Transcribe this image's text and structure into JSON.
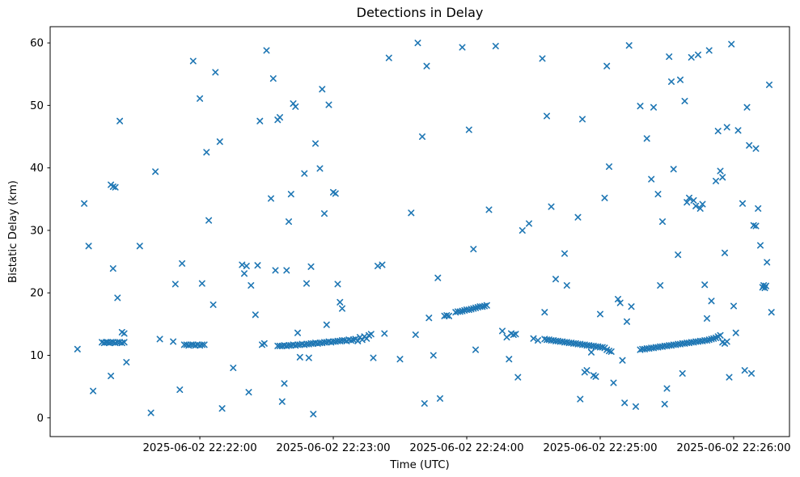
{
  "chart_data": {
    "type": "scatter",
    "title": "Detections in Delay",
    "xlabel": "Time (UTC)",
    "ylabel": "Bistatic Delay (km)",
    "marker": "x",
    "marker_color": "#1f77b4",
    "legend": "none",
    "grid": false,
    "x_unit": "seconds after 2025-06-02 22:21:00 UTC",
    "xlim": [
      -7.3,
      325.1
    ],
    "ylim": [
      -3.0,
      62.6
    ],
    "y_ticks": [
      0,
      10,
      20,
      30,
      40,
      50,
      60
    ],
    "x_ticks": [
      {
        "t": 60,
        "label": "2025-06-02 22:22:00"
      },
      {
        "t": 120,
        "label": "2025-06-02 22:23:00"
      },
      {
        "t": 180,
        "label": "2025-06-02 22:24:00"
      },
      {
        "t": 240,
        "label": "2025-06-02 22:25:00"
      },
      {
        "t": 300,
        "label": "2025-06-02 22:26:00"
      }
    ],
    "points": [
      [
        5,
        11.0
      ],
      [
        8,
        34.3
      ],
      [
        10,
        27.5
      ],
      [
        12,
        4.3
      ],
      [
        20,
        37.3
      ],
      [
        21,
        37.0
      ],
      [
        22,
        36.9
      ],
      [
        21,
        23.9
      ],
      [
        23,
        19.2
      ],
      [
        20,
        6.7
      ],
      [
        27,
        8.9
      ],
      [
        24,
        47.5
      ],
      [
        33,
        27.5
      ],
      [
        38,
        0.8
      ],
      [
        40,
        39.4
      ],
      [
        42,
        12.6
      ],
      [
        48,
        12.2
      ],
      [
        49,
        21.4
      ],
      [
        51,
        4.5
      ],
      [
        52,
        24.7
      ],
      [
        16,
        12.1
      ],
      [
        17,
        12.0
      ],
      [
        17.8,
        12.1
      ],
      [
        18.5,
        12.1
      ],
      [
        19.3,
        12.0
      ],
      [
        20,
        12.1
      ],
      [
        21,
        12.1
      ],
      [
        22,
        12.0
      ],
      [
        23,
        12.1
      ],
      [
        24,
        12.1
      ],
      [
        25,
        12.0
      ],
      [
        26,
        12.1
      ],
      [
        25,
        13.7
      ],
      [
        26,
        13.5
      ],
      [
        53,
        11.7
      ],
      [
        54,
        11.7
      ],
      [
        55,
        11.6
      ],
      [
        56,
        11.7
      ],
      [
        57,
        11.7
      ],
      [
        58,
        11.6
      ],
      [
        59,
        11.7
      ],
      [
        60,
        11.6
      ],
      [
        61,
        11.7
      ],
      [
        62,
        11.7
      ],
      [
        57,
        57.1
      ],
      [
        60,
        51.1
      ],
      [
        61,
        21.5
      ],
      [
        63,
        42.5
      ],
      [
        64,
        31.6
      ],
      [
        66,
        18.1
      ],
      [
        67,
        55.3
      ],
      [
        69,
        44.2
      ],
      [
        70,
        1.5
      ],
      [
        75,
        8.0
      ],
      [
        79,
        24.5
      ],
      [
        80,
        23.1
      ],
      [
        81,
        24.3
      ],
      [
        82,
        4.1
      ],
      [
        83,
        21.2
      ],
      [
        85,
        16.5
      ],
      [
        86,
        24.4
      ],
      [
        87,
        47.5
      ],
      [
        88,
        11.7
      ],
      [
        89,
        11.9
      ],
      [
        90,
        58.8
      ],
      [
        92,
        35.1
      ],
      [
        93,
        54.3
      ],
      [
        94,
        23.6
      ],
      [
        95,
        47.7
      ],
      [
        96,
        48.1
      ],
      [
        97,
        2.6
      ],
      [
        98,
        5.5
      ],
      [
        99,
        23.6
      ],
      [
        100,
        31.4
      ],
      [
        101,
        35.8
      ],
      [
        102,
        50.3
      ],
      [
        103,
        49.8
      ],
      [
        104,
        13.6
      ],
      [
        105,
        9.7
      ],
      [
        107,
        39.1
      ],
      [
        108,
        21.5
      ],
      [
        109,
        9.6
      ],
      [
        110,
        24.2
      ],
      [
        111,
        0.6
      ],
      [
        112,
        43.9
      ],
      [
        114,
        39.9
      ],
      [
        115,
        52.6
      ],
      [
        116,
        32.7
      ],
      [
        117,
        14.9
      ],
      [
        118,
        50.1
      ],
      [
        120,
        36.1
      ],
      [
        121,
        35.9
      ],
      [
        122,
        21.4
      ],
      [
        123,
        18.5
      ],
      [
        124,
        17.5
      ],
      [
        95,
        11.5
      ],
      [
        96,
        11.5
      ],
      [
        97,
        11.5
      ],
      [
        98,
        11.6
      ],
      [
        99,
        11.5
      ],
      [
        100,
        11.6
      ],
      [
        101,
        11.6
      ],
      [
        102,
        11.7
      ],
      [
        103,
        11.6
      ],
      [
        104,
        11.7
      ],
      [
        105,
        11.7
      ],
      [
        106,
        11.8
      ],
      [
        107,
        11.7
      ],
      [
        108,
        11.8
      ],
      [
        109,
        11.8
      ],
      [
        110,
        11.9
      ],
      [
        111,
        11.9
      ],
      [
        112,
        12.0
      ],
      [
        113,
        11.9
      ],
      [
        114,
        12.0
      ],
      [
        115,
        12.0
      ],
      [
        116,
        12.1
      ],
      [
        117,
        12.1
      ],
      [
        118,
        12.2
      ],
      [
        119,
        12.1
      ],
      [
        120,
        12.2
      ],
      [
        121,
        12.2
      ],
      [
        122,
        12.3
      ],
      [
        123,
        12.3
      ],
      [
        124,
        12.4
      ],
      [
        125,
        12.4
      ],
      [
        126,
        12.3
      ],
      [
        127,
        12.5
      ],
      [
        128,
        12.4
      ],
      [
        129,
        12.5
      ],
      [
        130,
        12.6
      ],
      [
        131,
        12.3
      ],
      [
        132,
        12.9
      ],
      [
        133,
        12.5
      ],
      [
        134,
        13.0
      ],
      [
        135,
        12.7
      ],
      [
        136,
        13.2
      ],
      [
        137,
        13.4
      ],
      [
        138,
        9.6
      ],
      [
        140,
        24.3
      ],
      [
        142,
        24.5
      ],
      [
        143,
        13.5
      ],
      [
        145,
        57.6
      ],
      [
        150,
        9.4
      ],
      [
        155,
        32.8
      ],
      [
        157,
        13.3
      ],
      [
        158,
        60.0
      ],
      [
        160,
        45.0
      ],
      [
        161,
        2.3
      ],
      [
        162,
        56.3
      ],
      [
        163,
        16.0
      ],
      [
        165,
        10.0
      ],
      [
        167,
        22.4
      ],
      [
        168,
        3.1
      ],
      [
        170,
        16.3
      ],
      [
        171,
        16.4
      ],
      [
        172,
        16.3
      ],
      [
        175,
        16.9
      ],
      [
        176,
        17.0
      ],
      [
        177,
        17.0
      ],
      [
        178,
        17.1
      ],
      [
        179,
        17.2
      ],
      [
        180,
        17.3
      ],
      [
        181,
        17.3
      ],
      [
        182,
        17.4
      ],
      [
        183,
        17.5
      ],
      [
        184,
        17.6
      ],
      [
        185,
        17.7
      ],
      [
        186,
        17.8
      ],
      [
        187,
        17.8
      ],
      [
        188,
        17.9
      ],
      [
        189,
        18.0
      ],
      [
        178,
        59.3
      ],
      [
        181,
        46.1
      ],
      [
        183,
        27.0
      ],
      [
        184,
        10.9
      ],
      [
        190,
        33.3
      ],
      [
        193,
        59.5
      ],
      [
        196,
        13.9
      ],
      [
        198,
        12.9
      ],
      [
        199,
        9.4
      ],
      [
        200,
        13.5
      ],
      [
        201,
        13.3
      ],
      [
        202,
        13.4
      ],
      [
        203,
        6.5
      ],
      [
        205,
        30.0
      ],
      [
        208,
        31.1
      ],
      [
        210,
        12.7
      ],
      [
        212,
        12.4
      ],
      [
        214,
        57.5
      ],
      [
        215,
        16.9
      ],
      [
        216,
        48.3
      ],
      [
        218,
        33.8
      ],
      [
        220,
        22.2
      ],
      [
        224,
        26.3
      ],
      [
        225,
        21.2
      ],
      [
        215,
        12.6
      ],
      [
        216,
        12.5
      ],
      [
        217,
        12.5
      ],
      [
        218,
        12.4
      ],
      [
        219,
        12.4
      ],
      [
        220,
        12.3
      ],
      [
        221,
        12.3
      ],
      [
        222,
        12.2
      ],
      [
        223,
        12.2
      ],
      [
        224,
        12.1
      ],
      [
        225,
        12.1
      ],
      [
        226,
        12.0
      ],
      [
        227,
        12.0
      ],
      [
        228,
        11.9
      ],
      [
        229,
        11.9
      ],
      [
        230,
        11.8
      ],
      [
        231,
        11.8
      ],
      [
        232,
        11.7
      ],
      [
        233,
        11.7
      ],
      [
        234,
        11.6
      ],
      [
        235,
        11.6
      ],
      [
        236,
        11.5
      ],
      [
        237,
        11.5
      ],
      [
        238,
        11.4
      ],
      [
        239,
        11.4
      ],
      [
        240,
        11.3
      ],
      [
        241,
        11.3
      ],
      [
        242,
        11.2
      ],
      [
        243,
        10.9
      ],
      [
        244,
        10.7
      ],
      [
        245,
        10.6
      ],
      [
        230,
        32.1
      ],
      [
        231,
        3.0
      ],
      [
        232,
        47.8
      ],
      [
        233,
        7.3
      ],
      [
        234,
        7.6
      ],
      [
        236,
        10.5
      ],
      [
        237,
        6.8
      ],
      [
        238,
        6.6
      ],
      [
        240,
        16.6
      ],
      [
        242,
        35.2
      ],
      [
        243,
        56.3
      ],
      [
        244,
        40.2
      ],
      [
        246,
        5.6
      ],
      [
        248,
        19.0
      ],
      [
        249,
        18.4
      ],
      [
        250,
        9.2
      ],
      [
        251,
        2.4
      ],
      [
        252,
        15.4
      ],
      [
        253,
        59.6
      ],
      [
        254,
        17.8
      ],
      [
        256,
        1.8
      ],
      [
        258,
        49.9
      ],
      [
        261,
        44.7
      ],
      [
        263,
        38.2
      ],
      [
        264,
        49.7
      ],
      [
        266,
        35.8
      ],
      [
        267,
        21.2
      ],
      [
        268,
        31.4
      ],
      [
        269,
        2.2
      ],
      [
        270,
        4.7
      ],
      [
        271,
        57.8
      ],
      [
        272,
        53.8
      ],
      [
        273,
        39.8
      ],
      [
        275,
        26.1
      ],
      [
        276,
        54.1
      ],
      [
        277,
        7.1
      ],
      [
        278,
        50.7
      ],
      [
        279,
        34.5
      ],
      [
        280,
        35.2
      ],
      [
        281,
        57.7
      ],
      [
        282,
        34.8
      ],
      [
        283,
        33.9
      ],
      [
        284,
        58.1
      ],
      [
        285,
        33.5
      ],
      [
        286,
        34.2
      ],
      [
        287,
        21.3
      ],
      [
        288,
        15.9
      ],
      [
        289,
        58.8
      ],
      [
        290,
        18.7
      ],
      [
        292,
        37.9
      ],
      [
        293,
        45.9
      ],
      [
        294,
        39.5
      ],
      [
        295,
        38.5
      ],
      [
        296,
        26.4
      ],
      [
        297,
        46.5
      ],
      [
        298,
        6.5
      ],
      [
        299,
        59.8
      ],
      [
        300,
        17.9
      ],
      [
        301,
        13.6
      ],
      [
        302,
        46.0
      ],
      [
        304,
        34.3
      ],
      [
        305,
        7.6
      ],
      [
        306,
        49.7
      ],
      [
        307,
        43.6
      ],
      [
        308,
        7.1
      ],
      [
        309,
        30.8
      ],
      [
        310,
        43.1
      ],
      [
        311,
        33.5
      ],
      [
        312,
        27.6
      ],
      [
        313,
        20.9
      ],
      [
        313.5,
        21.2
      ],
      [
        314,
        20.8
      ],
      [
        314.5,
        21.1
      ],
      [
        315,
        24.9
      ],
      [
        316,
        53.3
      ],
      [
        317,
        16.9
      ],
      [
        310,
        30.7
      ],
      [
        258,
        10.9
      ],
      [
        259,
        11.0
      ],
      [
        260,
        11.0
      ],
      [
        261,
        11.1
      ],
      [
        262,
        11.1
      ],
      [
        263,
        11.2
      ],
      [
        264,
        11.2
      ],
      [
        265,
        11.3
      ],
      [
        266,
        11.3
      ],
      [
        267,
        11.4
      ],
      [
        268,
        11.4
      ],
      [
        269,
        11.5
      ],
      [
        270,
        11.5
      ],
      [
        271,
        11.6
      ],
      [
        272,
        11.6
      ],
      [
        273,
        11.7
      ],
      [
        274,
        11.7
      ],
      [
        275,
        11.8
      ],
      [
        276,
        11.8
      ],
      [
        277,
        11.9
      ],
      [
        278,
        11.9
      ],
      [
        279,
        12.0
      ],
      [
        280,
        12.0
      ],
      [
        281,
        12.1
      ],
      [
        282,
        12.1
      ],
      [
        283,
        12.2
      ],
      [
        284,
        12.2
      ],
      [
        285,
        12.3
      ],
      [
        286,
        12.3
      ],
      [
        287,
        12.4
      ],
      [
        288,
        12.4
      ],
      [
        289,
        12.5
      ],
      [
        290,
        12.6
      ],
      [
        291,
        12.7
      ],
      [
        292,
        12.8
      ],
      [
        293,
        13.0
      ],
      [
        294,
        13.2
      ],
      [
        295,
        12.1
      ],
      [
        296,
        11.9
      ],
      [
        297,
        12.2
      ]
    ]
  }
}
